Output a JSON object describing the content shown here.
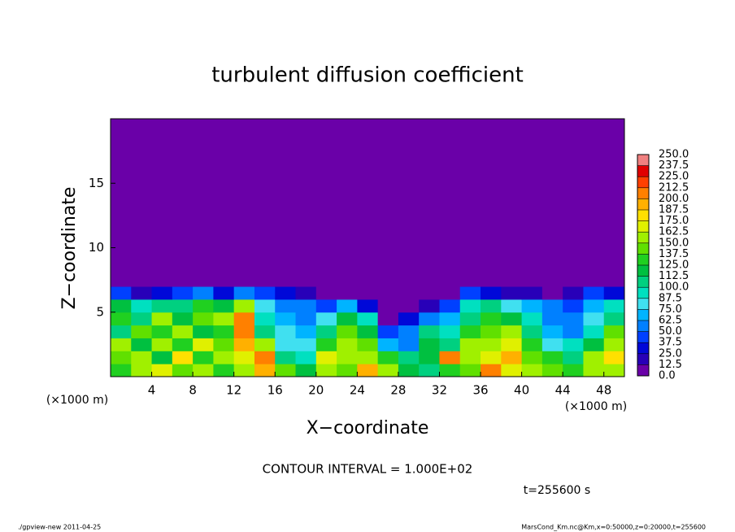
{
  "chart_data": {
    "type": "heatmap",
    "title": "turbulent diffusion coefficient",
    "x_label": "X−coordinate",
    "y_label": "Z−coordinate",
    "x_unit": "(×1000 m)",
    "x_unit_right": "(×1000 m)",
    "contour_note": "CONTOUR INTERVAL = 1.000E+02",
    "time_label": "t=255600 s",
    "footer_left": "./gpview-new  2011-04-25",
    "footer_right": "MarsCond_Km.nc@Km,x=0:50000,z=0:20000,t=255600",
    "xlim": [
      0,
      50
    ],
    "ylim": [
      0,
      20
    ],
    "xticks": [
      4,
      8,
      12,
      16,
      20,
      24,
      28,
      32,
      36,
      40,
      44,
      48
    ],
    "yticks": [
      5,
      10,
      15
    ],
    "x_edges": [
      0,
      2,
      4,
      6,
      8,
      10,
      12,
      14,
      16,
      18,
      20,
      22,
      24,
      26,
      28,
      30,
      32,
      34,
      36,
      38,
      40,
      42,
      44,
      46,
      48,
      50
    ],
    "z_edges": [
      0,
      1,
      2,
      3,
      4,
      5,
      6,
      7,
      20
    ],
    "values": [
      [
        130,
        150,
        170,
        140,
        160,
        130,
        150,
        190,
        140,
        120,
        160,
        140,
        190,
        150,
        120,
        110,
        130,
        140,
        200,
        170,
        150,
        140,
        130,
        160,
        150
      ],
      [
        140,
        160,
        120,
        180,
        130,
        150,
        170,
        200,
        110,
        90,
        170,
        150,
        160,
        130,
        110,
        120,
        200,
        150,
        170,
        190,
        140,
        130,
        110,
        150,
        180
      ],
      [
        150,
        120,
        160,
        130,
        170,
        140,
        190,
        150,
        80,
        80,
        130,
        160,
        140,
        70,
        60,
        120,
        110,
        160,
        150,
        170,
        130,
        80,
        90,
        120,
        150
      ],
      [
        110,
        140,
        130,
        150,
        120,
        130,
        200,
        100,
        80,
        70,
        110,
        140,
        120,
        40,
        50,
        100,
        90,
        130,
        140,
        150,
        110,
        70,
        60,
        90,
        140
      ],
      [
        130,
        100,
        150,
        120,
        140,
        160,
        210,
        90,
        70,
        60,
        80,
        120,
        90,
        10,
        30,
        60,
        70,
        110,
        130,
        120,
        90,
        60,
        50,
        80,
        110
      ],
      [
        120,
        90,
        110,
        100,
        130,
        120,
        150,
        80,
        60,
        50,
        40,
        70,
        30,
        5,
        5,
        20,
        40,
        90,
        100,
        80,
        70,
        60,
        40,
        70,
        90
      ],
      [
        40,
        20,
        30,
        40,
        50,
        30,
        60,
        40,
        30,
        20,
        10,
        5,
        5,
        0,
        0,
        5,
        10,
        40,
        30,
        20,
        15,
        10,
        20,
        40,
        30
      ],
      [
        0,
        0,
        0,
        0,
        0,
        0,
        0,
        0,
        0,
        0,
        0,
        0,
        0,
        0,
        0,
        0,
        0,
        0,
        0,
        0,
        0,
        0,
        0,
        0,
        0
      ]
    ],
    "color_levels": [
      {
        "value": 0,
        "label": "0.0"
      },
      {
        "value": 12.5,
        "label": "12.5"
      },
      {
        "value": 25,
        "label": "25.0"
      },
      {
        "value": 37.5,
        "label": "37.5"
      },
      {
        "value": 50,
        "label": "50.0"
      },
      {
        "value": 62.5,
        "label": "62.5"
      },
      {
        "value": 75,
        "label": "75.0"
      },
      {
        "value": 87.5,
        "label": "87.5"
      },
      {
        "value": 100,
        "label": "100.0"
      },
      {
        "value": 112.5,
        "label": "112.5"
      },
      {
        "value": 125,
        "label": "125.0"
      },
      {
        "value": 137.5,
        "label": "137.5"
      },
      {
        "value": 150,
        "label": "150.0"
      },
      {
        "value": 162.5,
        "label": "162.5"
      },
      {
        "value": 175,
        "label": "175.0"
      },
      {
        "value": 187.5,
        "label": "187.5"
      },
      {
        "value": 200,
        "label": "200.0"
      },
      {
        "value": 212.5,
        "label": "212.5"
      },
      {
        "value": 225,
        "label": "225.0"
      },
      {
        "value": 237.5,
        "label": "237.5"
      },
      {
        "value": 250,
        "label": "250.0"
      }
    ],
    "colors": [
      "#6a00a8",
      "#2800b8",
      "#0008d8",
      "#0040ff",
      "#0080ff",
      "#00b4ff",
      "#40e0f0",
      "#00e0c0",
      "#00d080",
      "#00c040",
      "#20d020",
      "#60e000",
      "#a0f000",
      "#e0f000",
      "#ffe000",
      "#ffb000",
      "#ff8000",
      "#ff4000",
      "#e00000",
      "#f08080"
    ]
  }
}
